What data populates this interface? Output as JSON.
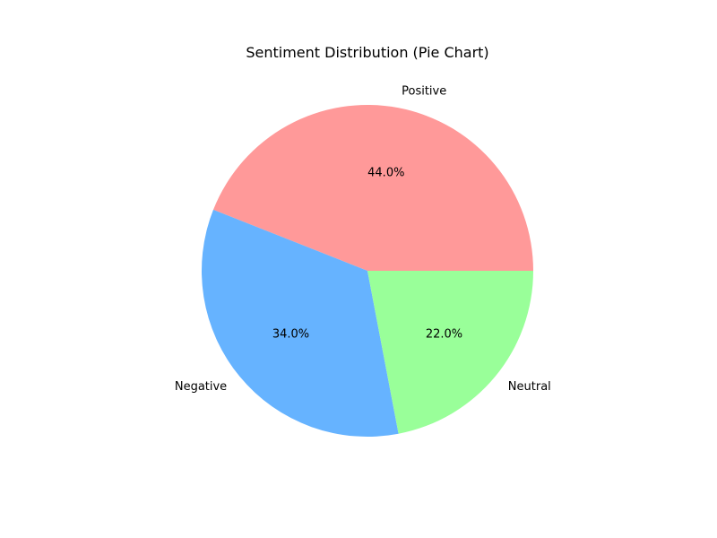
{
  "chart_data": {
    "type": "pie",
    "title": "Sentiment Distribution (Pie Chart)",
    "start_angle_deg": 0,
    "direction": "counterclockwise",
    "slices": [
      {
        "label": "Positive",
        "value": 44.0,
        "pct_label": "44.0%",
        "color": "#ff9999"
      },
      {
        "label": "Negative",
        "value": 34.0,
        "pct_label": "34.0%",
        "color": "#66b3ff"
      },
      {
        "label": "Neutral",
        "value": 22.0,
        "pct_label": "22.0%",
        "color": "#99ff99"
      }
    ]
  }
}
